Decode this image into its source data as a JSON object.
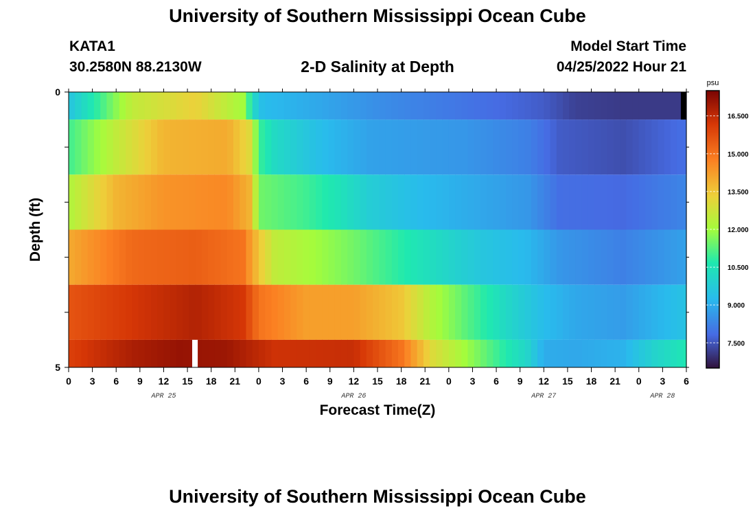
{
  "header": {
    "title": "University of Southern Mississippi Ocean Cube",
    "station": "KATA1",
    "coords": "30.2580N  88.2130W",
    "plot_title": "2-D Salinity at Depth",
    "start_label": "Model Start Time",
    "start_value": "04/25/2022 Hour 21"
  },
  "footer": {
    "title": "University of Southern Mississippi Ocean Cube"
  },
  "chart_data": {
    "type": "heatmap",
    "title": "2-D Salinity at Depth",
    "xlabel": "Forecast Time(Z)",
    "ylabel": "Depth (ft)",
    "y_tick_labels": [
      "0",
      "5"
    ],
    "x_tick_labels": [
      "0",
      "3",
      "6",
      "9",
      "12",
      "15",
      "18",
      "21",
      "0",
      "3",
      "6",
      "9",
      "12",
      "15",
      "18",
      "21",
      "0",
      "3",
      "6",
      "9",
      "12",
      "15",
      "18",
      "21",
      "0",
      "3",
      "6"
    ],
    "date_labels": [
      {
        "label": "APR 25",
        "hour": 12
      },
      {
        "label": "APR 26",
        "hour": 36
      },
      {
        "label": "APR 27",
        "hour": 60
      },
      {
        "label": "APR 28",
        "hour": 75
      }
    ],
    "x_range_hours": [
      0,
      78
    ],
    "colorbar": {
      "unit": "psu",
      "range": [
        6.5,
        17.5
      ],
      "ticks": [
        "16.500",
        "15.000",
        "13.500",
        "12.000",
        "10.500",
        "9.000",
        "7.500"
      ]
    },
    "rows": [
      {
        "y_ft": [
          0,
          0.5
        ],
        "keys": [
          [
            0,
            9.5
          ],
          [
            8,
            12.5
          ],
          [
            16,
            13.3
          ],
          [
            22,
            12.0
          ],
          [
            23.5,
            10.0
          ],
          [
            24.5,
            9.3
          ],
          [
            30,
            9.0
          ],
          [
            40,
            8.4
          ],
          [
            50,
            8.0
          ],
          [
            60,
            7.6
          ],
          [
            64,
            7.2
          ],
          [
            70,
            7.1
          ],
          [
            76,
            7.1
          ],
          [
            78,
            7.1
          ]
        ]
      },
      {
        "y_ft": [
          0.5,
          1.5
        ],
        "keys": [
          [
            0,
            11.0
          ],
          [
            6,
            12.5
          ],
          [
            12,
            13.8
          ],
          [
            20,
            14.0
          ],
          [
            23,
            13.0
          ],
          [
            24,
            11.0
          ],
          [
            26,
            10.2
          ],
          [
            32,
            9.3
          ],
          [
            38,
            8.8
          ],
          [
            50,
            8.6
          ],
          [
            58,
            8.2
          ],
          [
            62,
            7.6
          ],
          [
            70,
            7.4
          ],
          [
            78,
            7.9
          ]
        ]
      },
      {
        "y_ft": [
          1.5,
          2.5
        ],
        "keys": [
          [
            0,
            12.2
          ],
          [
            6,
            13.8
          ],
          [
            12,
            14.4
          ],
          [
            20,
            14.6
          ],
          [
            23,
            13.8
          ],
          [
            24,
            11.5
          ],
          [
            30,
            11.0
          ],
          [
            34,
            10.5
          ],
          [
            38,
            9.8
          ],
          [
            44,
            9.3
          ],
          [
            58,
            8.6
          ],
          [
            62,
            7.9
          ],
          [
            70,
            7.8
          ],
          [
            78,
            8.3
          ]
        ]
      },
      {
        "y_ft": [
          2.5,
          3.5
        ],
        "keys": [
          [
            0,
            14.0
          ],
          [
            8,
            15.2
          ],
          [
            16,
            15.4
          ],
          [
            22,
            15.0
          ],
          [
            24,
            13.5
          ],
          [
            26,
            12.5
          ],
          [
            36,
            11.5
          ],
          [
            44,
            10.5
          ],
          [
            52,
            9.6
          ],
          [
            58,
            9.2
          ],
          [
            62,
            8.6
          ],
          [
            70,
            8.2
          ],
          [
            78,
            8.8
          ]
        ]
      },
      {
        "y_ft": [
          3.5,
          4.5
        ],
        "keys": [
          [
            0,
            15.6
          ],
          [
            8,
            16.2
          ],
          [
            16,
            16.7
          ],
          [
            22,
            16.2
          ],
          [
            24,
            15.0
          ],
          [
            30,
            14.2
          ],
          [
            36,
            14.2
          ],
          [
            42,
            13.5
          ],
          [
            46,
            12.2
          ],
          [
            50,
            11.3
          ],
          [
            56,
            10.0
          ],
          [
            60,
            9.3
          ],
          [
            64,
            8.9
          ],
          [
            70,
            8.7
          ],
          [
            78,
            9.5
          ]
        ]
      },
      {
        "y_ft": [
          4.5,
          5
        ],
        "keys": [
          [
            0,
            16.0
          ],
          [
            8,
            16.8
          ],
          [
            14,
            17.1
          ],
          [
            20,
            17.0
          ],
          [
            26,
            16.3
          ],
          [
            36,
            16.4
          ],
          [
            42,
            15.0
          ],
          [
            46,
            13.0
          ],
          [
            50,
            12.0
          ],
          [
            54,
            11.0
          ],
          [
            58,
            10.0
          ],
          [
            60,
            9.0
          ],
          [
            64,
            8.9
          ],
          [
            70,
            9.1
          ],
          [
            74,
            10.0
          ],
          [
            78,
            10.6
          ]
        ]
      }
    ],
    "missing": [
      {
        "hour_start": 15.6,
        "hour_end": 16.3,
        "y_ft": [
          4.5,
          5
        ]
      }
    ],
    "top_right_dark": {
      "hour_start": 77.3,
      "hour_end": 78,
      "y_ft": [
        0,
        0.5
      ]
    }
  }
}
